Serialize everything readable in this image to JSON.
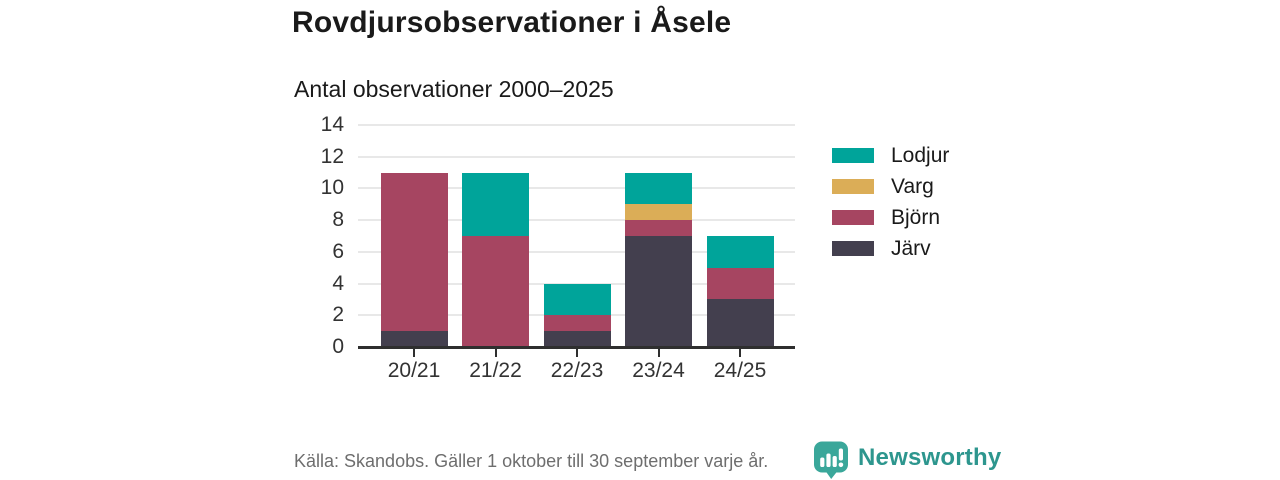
{
  "header": {
    "title": "Rovdjursobservationer i Åsele",
    "subtitle": "Antal observationer 2000–2025"
  },
  "chart_data": {
    "type": "bar",
    "stacked": true,
    "title": "Rovdjursobservationer i Åsele",
    "subtitle": "Antal observationer 2000–2025",
    "categories": [
      "20/21",
      "21/22",
      "22/23",
      "23/24",
      "24/25"
    ],
    "series": [
      {
        "key": "lodjur",
        "name": "Lodjur",
        "color": "#00a49a",
        "values": [
          0,
          4,
          2,
          2,
          2
        ]
      },
      {
        "key": "varg",
        "name": "Varg",
        "color": "#dbad57",
        "values": [
          0,
          0,
          0,
          1,
          0
        ]
      },
      {
        "key": "bjorn",
        "name": "Björn",
        "color": "#a64561",
        "values": [
          10,
          7,
          1,
          1,
          2
        ]
      },
      {
        "key": "jarv",
        "name": "Järv",
        "color": "#433f4e",
        "values": [
          1,
          0,
          1,
          7,
          3
        ]
      }
    ],
    "stack_order_bottom_to_top": [
      "jarv",
      "bjorn",
      "varg",
      "lodjur"
    ],
    "totals": [
      11,
      11,
      4,
      11,
      7
    ],
    "ylim": [
      0,
      14
    ],
    "yticks": [
      0,
      2,
      4,
      6,
      8,
      10,
      12,
      14
    ],
    "grid": "horizontal",
    "legend_position": "right"
  },
  "footer": {
    "source": "Källa: Skandobs. Gäller 1 oktober till 30 september varje år.",
    "brand": "Newsworthy",
    "brand_color": "#2d968e",
    "logo_color": "#3aa79a"
  }
}
